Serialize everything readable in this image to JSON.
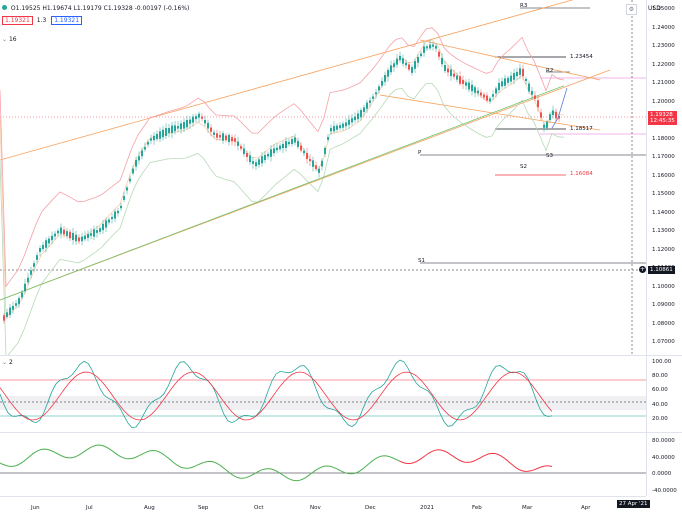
{
  "legend": {
    "ohlc": "O1.19525 H1.19674 L1.19179 C1.19328 -0.00197 (-0.16%)",
    "val_red": "1.19321",
    "sep": "1.3",
    "val_blue": "1.19321",
    "sub_label": "16"
  },
  "currency": "USD",
  "price_axis": [
    "1.25000",
    "1.24000",
    "1.23000",
    "1.22000",
    "1.21000",
    "1.20000",
    "1.19000",
    "1.18000",
    "1.17000",
    "1.16000",
    "1.15000",
    "1.14000",
    "1.13000",
    "1.12000",
    "1.11000",
    "1.10000",
    "1.09000",
    "1.08000",
    "1.07000"
  ],
  "price_tags": {
    "last": "1.19328",
    "countdown": "12:45:35",
    "crosshair": "1.10861"
  },
  "annotations": {
    "high_level": "1.23454",
    "low_level": "1.18517",
    "s2_level": "1.16084"
  },
  "pivots": {
    "r3": "R3",
    "r2": "R2",
    "p": "P",
    "s1": "S1",
    "s2": "S2",
    "s3": "S3"
  },
  "osc1": {
    "label": "2",
    "axis": [
      "100.00",
      "80.00",
      "60.00",
      "40.00",
      "20.00"
    ]
  },
  "osc2": {
    "axis": [
      "80.0000",
      "40.0000",
      "0.0000",
      "-40.0000"
    ]
  },
  "time_axis": [
    "Jun",
    "Jul",
    "Aug",
    "Sep",
    "Oct",
    "Nov",
    "Dec",
    "2021",
    "Feb",
    "Mar",
    "Apr"
  ],
  "date_tag": "27 Apr '21",
  "colors": {
    "up": "#26a69a",
    "down": "#ef5350",
    "orange": "#f7a15c",
    "pink": "#f5a0a8",
    "green_line": "#72c472",
    "last_price": "#f23645",
    "crosshair": "#131722"
  }
}
